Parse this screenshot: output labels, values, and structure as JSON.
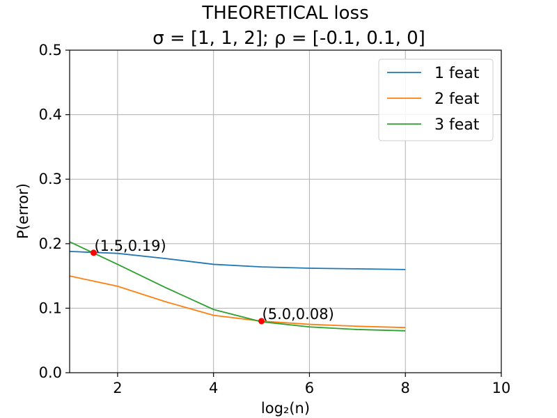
{
  "chart_data": {
    "type": "line",
    "title_line1": "THEORETICAL loss",
    "title_line2": "σ = [1, 1, 2];  ρ = [-0.1, 0.1, 0]",
    "xlabel": "log₂(n)",
    "ylabel": "P(error)",
    "xlim": [
      1,
      10
    ],
    "ylim": [
      0,
      0.5
    ],
    "xticks": [
      2,
      4,
      6,
      8,
      10
    ],
    "xtick_labels": [
      "2",
      "4",
      "6",
      "8",
      "10"
    ],
    "yticks": [
      0.0,
      0.1,
      0.2,
      0.3,
      0.4,
      0.5
    ],
    "ytick_labels": [
      "0.0",
      "0.1",
      "0.2",
      "0.3",
      "0.4",
      "0.5"
    ],
    "grid": true,
    "legend_position": "top-right",
    "x": [
      1,
      2,
      3,
      4,
      5,
      6,
      7,
      8
    ],
    "series": [
      {
        "name": "1 feat",
        "color": "#1f77b4",
        "values": [
          0.188,
          0.185,
          0.177,
          0.168,
          0.164,
          0.162,
          0.161,
          0.16
        ]
      },
      {
        "name": "2 feat",
        "color": "#ff7f0e",
        "values": [
          0.15,
          0.134,
          0.11,
          0.089,
          0.08,
          0.075,
          0.072,
          0.07
        ]
      },
      {
        "name": "3 feat",
        "color": "#2ca02c",
        "values": [
          0.203,
          0.168,
          0.132,
          0.098,
          0.079,
          0.071,
          0.067,
          0.065
        ]
      }
    ],
    "annotations": [
      {
        "x": 1.5,
        "y": 0.186,
        "label": "(1.5,0.19)",
        "color": "#ff0000"
      },
      {
        "x": 5.0,
        "y": 0.08,
        "label": "(5.0,0.08)",
        "color": "#ff0000"
      }
    ]
  }
}
